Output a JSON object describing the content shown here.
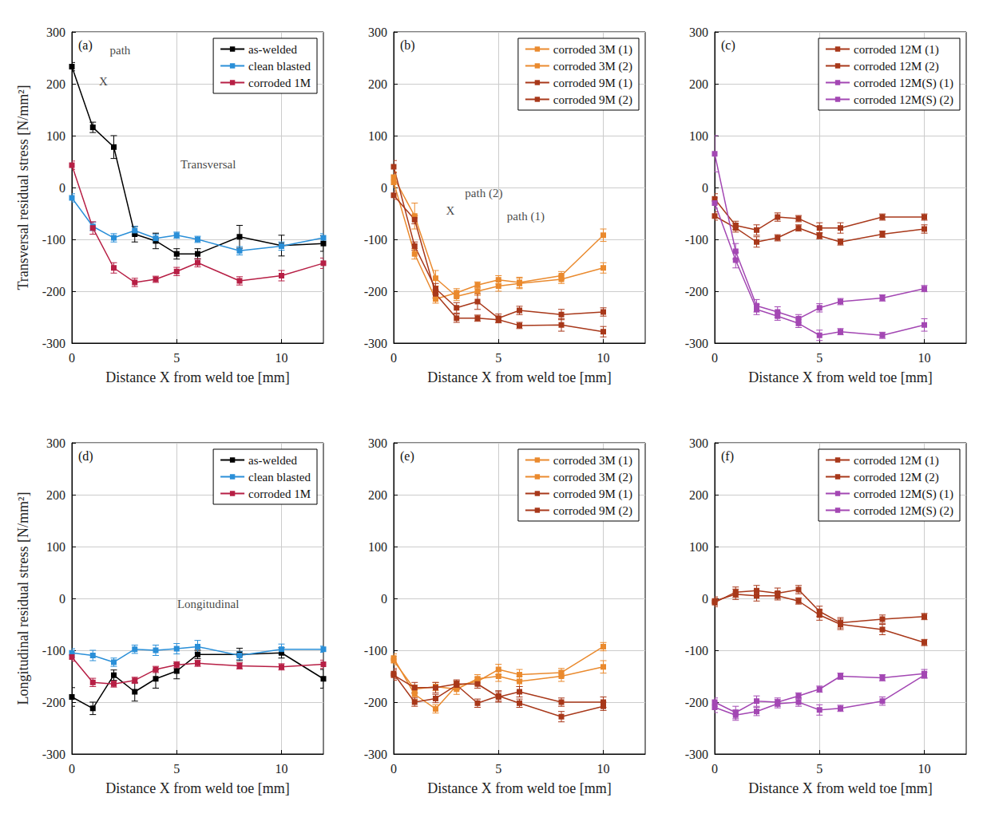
{
  "chart_data": [
    {
      "type": "line",
      "title": "(a)",
      "x_label": "Distance X from weld toe [mm]",
      "y_label": "Transversal residual stress [N/mm²]",
      "x": [
        0,
        1,
        2,
        3,
        4,
        5,
        6,
        8,
        10,
        12
      ],
      "series": [
        {
          "name": "as-welded",
          "color": "#000000",
          "marker": "square",
          "values": [
            233,
            116,
            78,
            -90,
            -103,
            -128,
            -128,
            -95,
            -112,
            -108
          ],
          "errors": [
            8,
            10,
            22,
            15,
            15,
            10,
            10,
            22,
            20,
            15
          ]
        },
        {
          "name": "clean blasted",
          "color": "#2a8fd8",
          "marker": "square",
          "values": [
            -20,
            -75,
            -97,
            -83,
            -98,
            -92,
            -100,
            -122,
            -113,
            -97
          ],
          "errors": [
            8,
            8,
            8,
            8,
            8,
            6,
            6,
            8,
            8,
            8
          ]
        },
        {
          "name": "corroded 1M",
          "color": "#b71f45",
          "marker": "square",
          "values": [
            43,
            -78,
            -155,
            -183,
            -177,
            -162,
            -145,
            -180,
            -170,
            -146
          ],
          "errors": [
            8,
            12,
            10,
            8,
            6,
            8,
            8,
            8,
            10,
            10
          ]
        }
      ],
      "annotations": [
        {
          "text": "path",
          "x": 2.3,
          "y": 265
        },
        {
          "text": "X",
          "x": 1.5,
          "y": 205
        },
        {
          "text": "Transversal",
          "x": 6.5,
          "y": 45
        }
      ],
      "xlim": [
        0,
        12
      ],
      "xticks": [
        0,
        5,
        10
      ],
      "ylim": [
        -300,
        300
      ],
      "yticks": [
        -300,
        -200,
        -100,
        0,
        100,
        200,
        300
      ],
      "grid": true,
      "legend": "top-right"
    },
    {
      "type": "line",
      "title": "(b)",
      "x_label": "Distance X from weld toe [mm]",
      "x": [
        0,
        1,
        2,
        3,
        4,
        5,
        6,
        8,
        10
      ],
      "series": [
        {
          "name": "corroded 3M (1)",
          "color": "#ea8a2e",
          "marker": "square",
          "values": [
            10,
            -128,
            -215,
            -203,
            -188,
            -178,
            -183,
            -170,
            -92
          ],
          "errors": [
            10,
            10,
            8,
            8,
            6,
            8,
            10,
            8,
            12
          ]
        },
        {
          "name": "corroded 3M (2)",
          "color": "#ea8a2e",
          "marker": "square",
          "values": [
            20,
            -55,
            -175,
            -210,
            -200,
            -190,
            -185,
            -177,
            -155
          ],
          "errors": [
            10,
            25,
            15,
            8,
            8,
            10,
            10,
            8,
            10
          ]
        },
        {
          "name": "corroded 9M (1)",
          "color": "#a8381a",
          "marker": "square",
          "values": [
            40,
            -113,
            -195,
            -232,
            -220,
            -252,
            -237,
            -245,
            -240
          ],
          "errors": [
            12,
            8,
            10,
            10,
            15,
            8,
            8,
            10,
            8
          ]
        },
        {
          "name": "corroded 9M (2)",
          "color": "#a8381a",
          "marker": "square",
          "values": [
            -15,
            -62,
            -205,
            -252,
            -252,
            -255,
            -266,
            -265,
            -278
          ],
          "errors": [
            8,
            8,
            8,
            8,
            6,
            6,
            6,
            12,
            10
          ]
        }
      ],
      "annotations": [
        {
          "text": "path (2)",
          "x": 4.3,
          "y": -10
        },
        {
          "text": "X",
          "x": 2.7,
          "y": -45
        },
        {
          "text": "path (1)",
          "x": 6.3,
          "y": -55
        }
      ],
      "xlim": [
        0,
        12
      ],
      "xticks": [
        0,
        5,
        10
      ],
      "ylim": [
        -300,
        300
      ],
      "yticks": [
        -300,
        -200,
        -100,
        0,
        100,
        200,
        300
      ],
      "grid": true,
      "legend": "top-right"
    },
    {
      "type": "line",
      "title": "(c)",
      "x_label": "Distance X from weld toe [mm]",
      "x": [
        0,
        1,
        2,
        3,
        4,
        5,
        6,
        8,
        10
      ],
      "series": [
        {
          "name": "corroded 12M (1)",
          "color": "#a8381a",
          "marker": "square",
          "values": [
            -22,
            -73,
            -82,
            -57,
            -60,
            -78,
            -78,
            -57,
            -57
          ],
          "errors": [
            10,
            8,
            10,
            8,
            6,
            10,
            10,
            6,
            6
          ]
        },
        {
          "name": "corroded 12M (2)",
          "color": "#a8381a",
          "marker": "square",
          "values": [
            -55,
            -78,
            -105,
            -97,
            -78,
            -93,
            -105,
            -90,
            -80
          ],
          "errors": [
            8,
            8,
            10,
            6,
            6,
            6,
            6,
            6,
            8
          ]
        },
        {
          "name": "corroded 12M(S) (1)",
          "color": "#a347b3",
          "marker": "square",
          "values": [
            65,
            -123,
            -228,
            -240,
            -253,
            -232,
            -220,
            -213,
            -195
          ],
          "errors": [
            35,
            15,
            12,
            10,
            8,
            8,
            6,
            6,
            6
          ]
        },
        {
          "name": "corroded 12M(S) (2)",
          "color": "#a347b3",
          "marker": "square",
          "values": [
            -30,
            -140,
            -235,
            -248,
            -262,
            -285,
            -278,
            -285,
            -265
          ],
          "errors": [
            10,
            15,
            10,
            8,
            8,
            10,
            6,
            6,
            12
          ]
        }
      ],
      "xlim": [
        0,
        12
      ],
      "xticks": [
        0,
        5,
        10
      ],
      "ylim": [
        -300,
        300
      ],
      "yticks": [
        -300,
        -200,
        -100,
        0,
        100,
        200,
        300
      ],
      "grid": true,
      "legend": "top-right"
    },
    {
      "type": "line",
      "title": "(d)",
      "x_label": "Distance X from weld toe [mm]",
      "y_label": "Longitudinal residual stress [N/mm²]",
      "x": [
        0,
        1,
        2,
        3,
        4,
        5,
        6,
        8,
        10,
        12
      ],
      "series": [
        {
          "name": "as-welded",
          "color": "#000000",
          "marker": "square",
          "values": [
            -190,
            -212,
            -148,
            -180,
            -155,
            -140,
            -108,
            -108,
            -105,
            -155
          ],
          "errors": [
            18,
            12,
            10,
            18,
            18,
            15,
            8,
            12,
            10,
            18
          ]
        },
        {
          "name": "clean blasted",
          "color": "#2a8fd8",
          "marker": "square",
          "values": [
            -105,
            -110,
            -123,
            -98,
            -100,
            -97,
            -93,
            -110,
            -98,
            -98
          ],
          "errors": [
            8,
            10,
            8,
            8,
            10,
            10,
            12,
            8,
            10,
            6
          ]
        },
        {
          "name": "corroded 1M",
          "color": "#b71f45",
          "marker": "square",
          "values": [
            -113,
            -162,
            -165,
            -158,
            -137,
            -128,
            -125,
            -130,
            -132,
            -127
          ],
          "errors": [
            8,
            8,
            6,
            6,
            6,
            6,
            6,
            6,
            6,
            8
          ]
        }
      ],
      "annotations": [
        {
          "text": "Longitudinal",
          "x": 6.5,
          "y": -10
        }
      ],
      "xlim": [
        0,
        12
      ],
      "xticks": [
        0,
        5,
        10
      ],
      "ylim": [
        -300,
        300
      ],
      "yticks": [
        -300,
        -200,
        -100,
        0,
        100,
        200,
        300
      ],
      "grid": true,
      "legend": "top-right"
    },
    {
      "type": "line",
      "title": "(e)",
      "x_label": "Distance X from weld toe [mm]",
      "x": [
        0,
        1,
        2,
        3,
        4,
        5,
        6,
        8,
        10
      ],
      "series": [
        {
          "name": "corroded 3M (1)",
          "color": "#ea8a2e",
          "marker": "square",
          "values": [
            -115,
            -185,
            -213,
            -168,
            -160,
            -137,
            -147,
            -143,
            -93
          ],
          "errors": [
            8,
            10,
            8,
            8,
            8,
            10,
            10,
            8,
            8
          ]
        },
        {
          "name": "corroded 3M (2)",
          "color": "#ea8a2e",
          "marker": "square",
          "values": [
            -120,
            -175,
            -170,
            -175,
            -155,
            -150,
            -160,
            -150,
            -132
          ],
          "errors": [
            8,
            8,
            8,
            10,
            8,
            10,
            10,
            10,
            12
          ]
        },
        {
          "name": "corroded 9M (1)",
          "color": "#a8381a",
          "marker": "square",
          "values": [
            -148,
            -172,
            -172,
            -165,
            -165,
            -190,
            -180,
            -200,
            -200
          ],
          "errors": [
            10,
            10,
            10,
            8,
            8,
            10,
            10,
            8,
            10
          ]
        },
        {
          "name": "corroded 9M (2)",
          "color": "#a8381a",
          "marker": "square",
          "values": [
            -145,
            -200,
            -193,
            -167,
            -202,
            -188,
            -202,
            -228,
            -208
          ],
          "errors": [
            10,
            8,
            8,
            8,
            8,
            10,
            8,
            10,
            8
          ]
        }
      ],
      "xlim": [
        0,
        12
      ],
      "xticks": [
        0,
        5,
        10
      ],
      "ylim": [
        -300,
        300
      ],
      "yticks": [
        -300,
        -200,
        -100,
        0,
        100,
        200,
        300
      ],
      "grid": true,
      "legend": "top-right"
    },
    {
      "type": "line",
      "title": "(f)",
      "x_label": "Distance X from weld toe [mm]",
      "x": [
        0,
        1,
        2,
        3,
        4,
        5,
        6,
        8,
        10
      ],
      "series": [
        {
          "name": "corroded 12M (1)",
          "color": "#a8381a",
          "marker": "square",
          "values": [
            -8,
            12,
            15,
            10,
            17,
            -25,
            -47,
            -40,
            -35
          ],
          "errors": [
            8,
            10,
            10,
            10,
            8,
            10,
            10,
            8,
            6
          ]
        },
        {
          "name": "corroded 12M (2)",
          "color": "#a8381a",
          "marker": "square",
          "values": [
            -5,
            8,
            5,
            5,
            -5,
            -32,
            -50,
            -60,
            -85
          ],
          "errors": [
            8,
            10,
            10,
            8,
            6,
            10,
            10,
            10,
            6
          ]
        },
        {
          "name": "corroded 12M(S) (1)",
          "color": "#a347b3",
          "marker": "square",
          "values": [
            -200,
            -220,
            -198,
            -200,
            -188,
            -175,
            -150,
            -153,
            -145
          ],
          "errors": [
            8,
            12,
            10,
            8,
            6,
            6,
            6,
            6,
            8
          ]
        },
        {
          "name": "corroded 12M(S) (2)",
          "color": "#a347b3",
          "marker": "square",
          "values": [
            -210,
            -225,
            -218,
            -203,
            -200,
            -215,
            -212,
            -198,
            -148
          ],
          "errors": [
            10,
            10,
            8,
            8,
            8,
            10,
            6,
            8,
            6
          ]
        }
      ],
      "xlim": [
        0,
        12
      ],
      "xticks": [
        0,
        5,
        10
      ],
      "ylim": [
        -300,
        300
      ],
      "yticks": [
        -300,
        -200,
        -100,
        0,
        100,
        200,
        300
      ],
      "grid": true,
      "legend": "top-right"
    }
  ]
}
